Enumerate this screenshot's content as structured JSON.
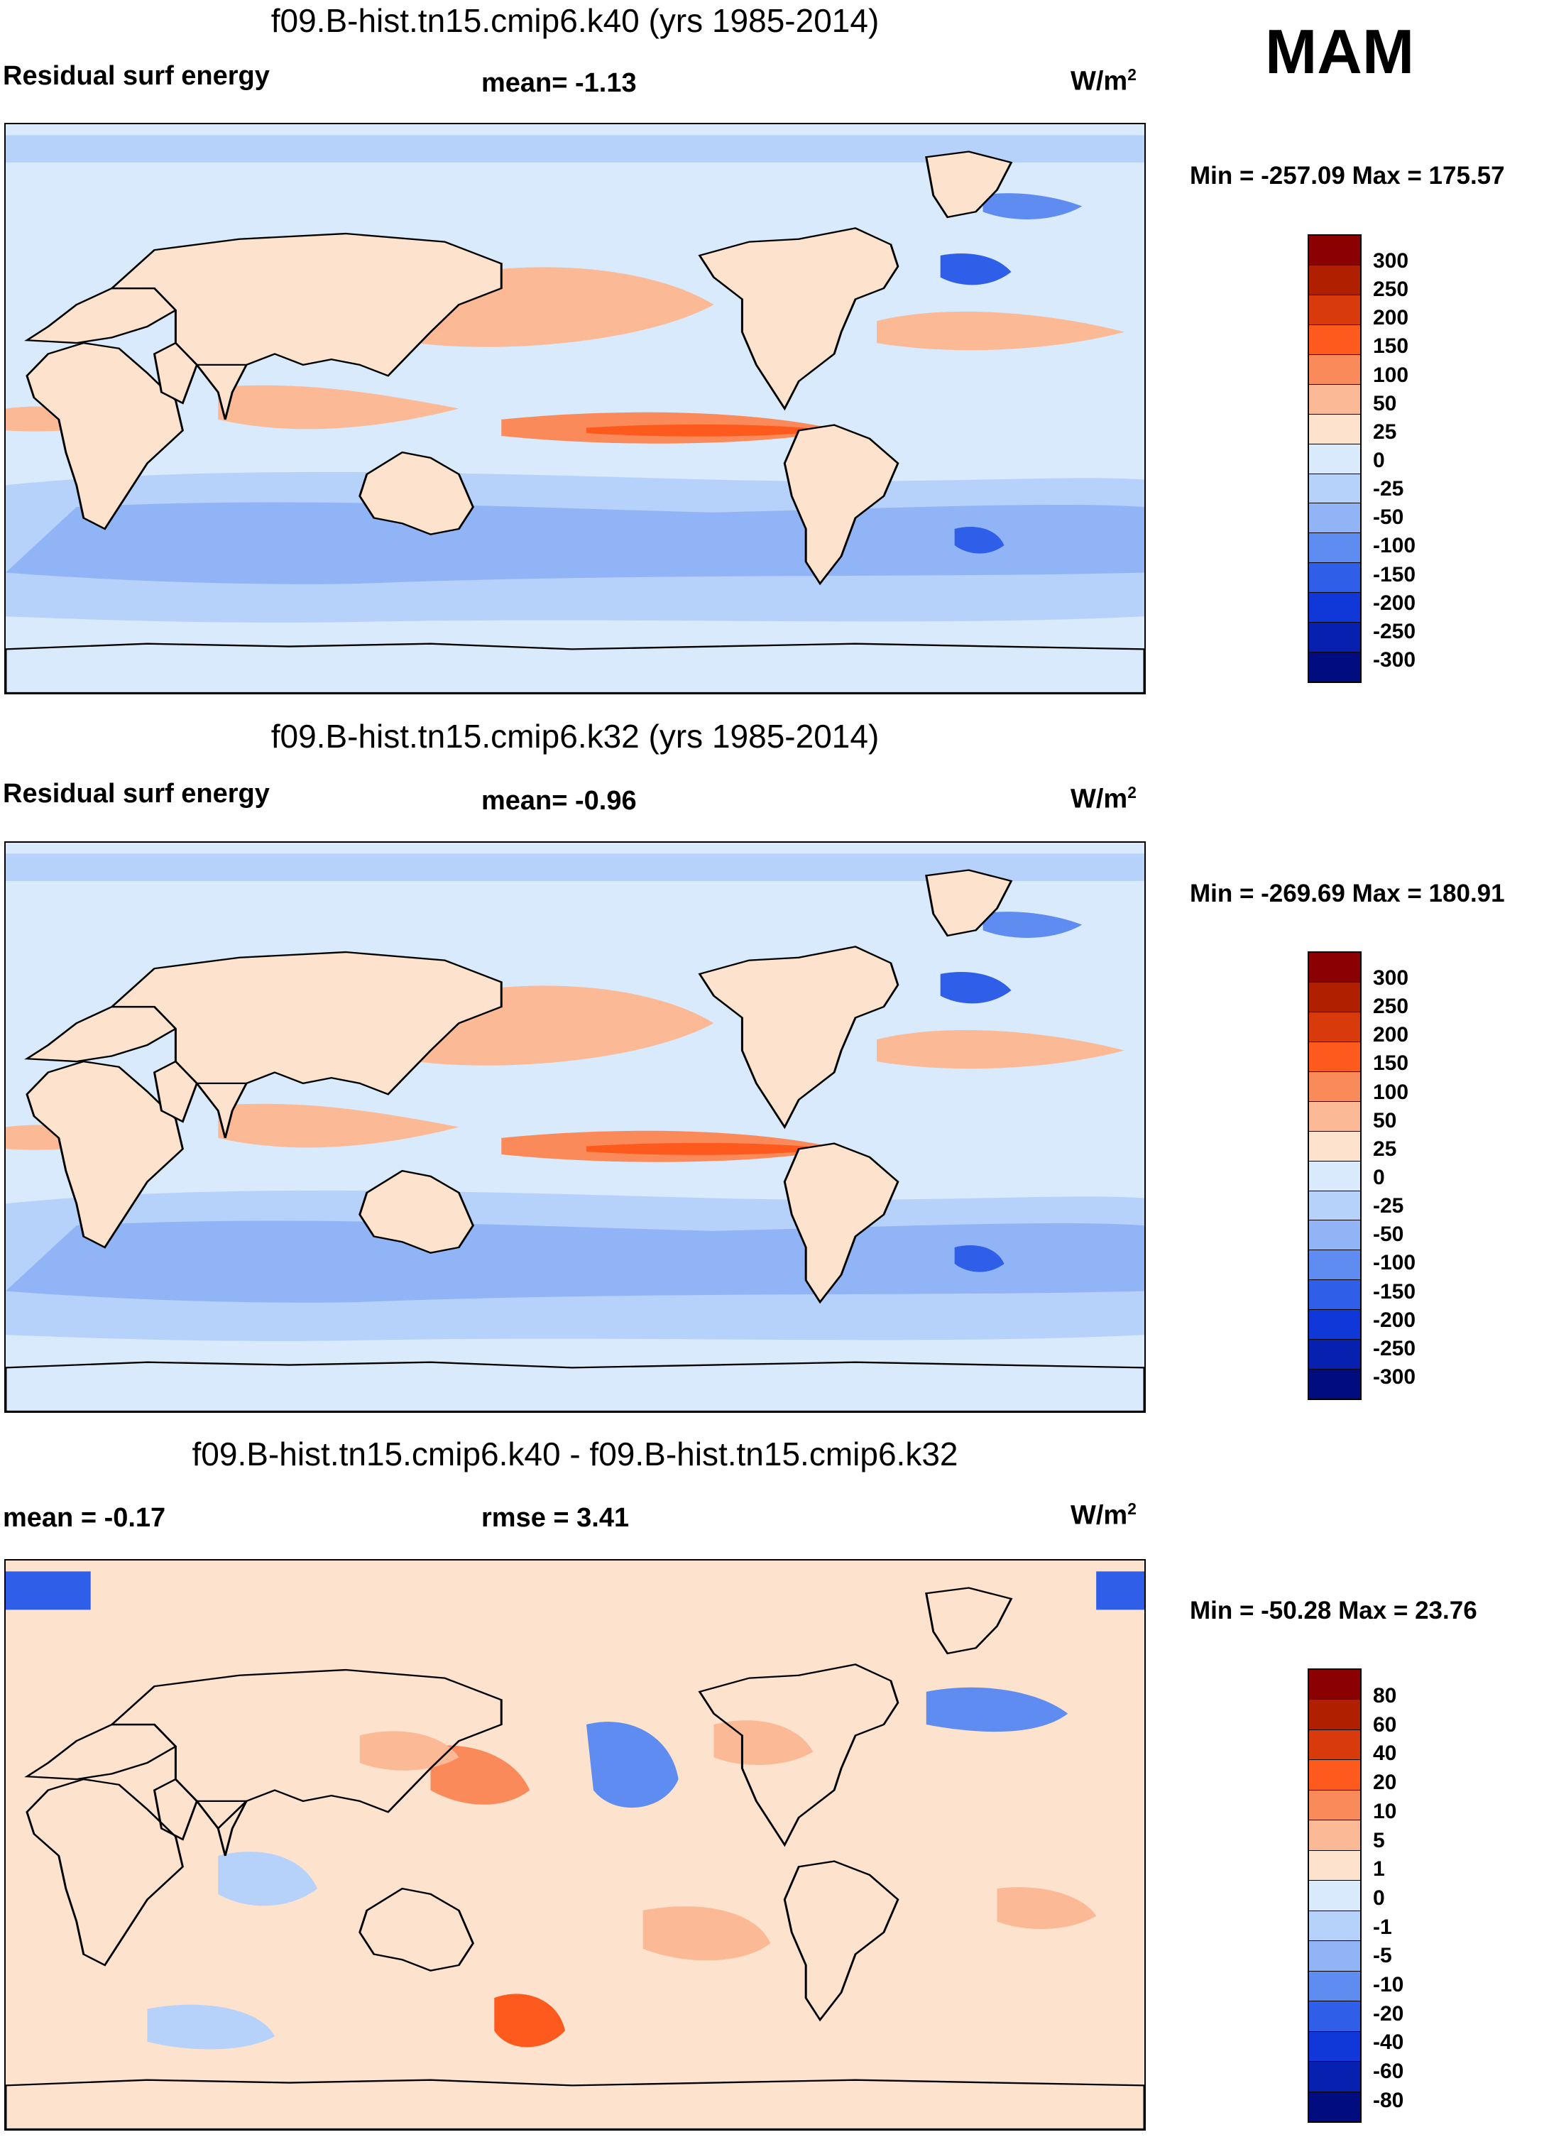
{
  "season": "MAM",
  "panels": [
    {
      "title": "f09.B-hist.tn15.cmip6.k40 (yrs 1985-2014)",
      "left_label": "Residual surf energy",
      "center_label": "mean=  -1.13",
      "units": "W/m",
      "units_sup": "2",
      "minmax": "Min = -257.09 Max = 175.57",
      "colorbar": {
        "ticks": [
          "300",
          "250",
          "200",
          "150",
          "100",
          "50",
          "25",
          "0",
          "-25",
          "-50",
          "-100",
          "-150",
          "-200",
          "-250",
          "-300"
        ],
        "colors": [
          "#8b0000",
          "#b02000",
          "#d83a0c",
          "#ff5a1e",
          "#fa8a5a",
          "#fcb995",
          "#fde2ce",
          "#d8eafc",
          "#b6d2fa",
          "#90b4f5",
          "#5f8cf0",
          "#2f5ee8",
          "#1038d8",
          "#0820b0",
          "#000c80"
        ]
      },
      "map_kind": "abs"
    },
    {
      "title": "f09.B-hist.tn15.cmip6.k32 (yrs 1985-2014)",
      "left_label": "Residual surf energy",
      "center_label": "mean=  -0.96",
      "units": "W/m",
      "units_sup": "2",
      "minmax": "Min = -269.69 Max = 180.91",
      "colorbar": {
        "ticks": [
          "300",
          "250",
          "200",
          "150",
          "100",
          "50",
          "25",
          "0",
          "-25",
          "-50",
          "-100",
          "-150",
          "-200",
          "-250",
          "-300"
        ],
        "colors": [
          "#8b0000",
          "#b02000",
          "#d83a0c",
          "#ff5a1e",
          "#fa8a5a",
          "#fcb995",
          "#fde2ce",
          "#d8eafc",
          "#b6d2fa",
          "#90b4f5",
          "#5f8cf0",
          "#2f5ee8",
          "#1038d8",
          "#0820b0",
          "#000c80"
        ]
      },
      "map_kind": "abs"
    },
    {
      "title": "f09.B-hist.tn15.cmip6.k40 - f09.B-hist.tn15.cmip6.k32",
      "left_label": "mean =  -0.17",
      "center_label": "rmse =   3.41",
      "units": "W/m",
      "units_sup": "2",
      "minmax": "Min = -50.28 Max =  23.76",
      "colorbar": {
        "ticks": [
          "80",
          "60",
          "40",
          "20",
          "10",
          "5",
          "1",
          "0",
          "-1",
          "-5",
          "-10",
          "-20",
          "-40",
          "-60",
          "-80"
        ],
        "colors": [
          "#8b0000",
          "#b02000",
          "#d83a0c",
          "#ff5a1e",
          "#fa8a5a",
          "#fcb995",
          "#fde2ce",
          "#d8eafc",
          "#b6d2fa",
          "#90b4f5",
          "#5f8cf0",
          "#2f5ee8",
          "#1038d8",
          "#0820b0",
          "#000c80"
        ]
      },
      "map_kind": "diff"
    }
  ]
}
